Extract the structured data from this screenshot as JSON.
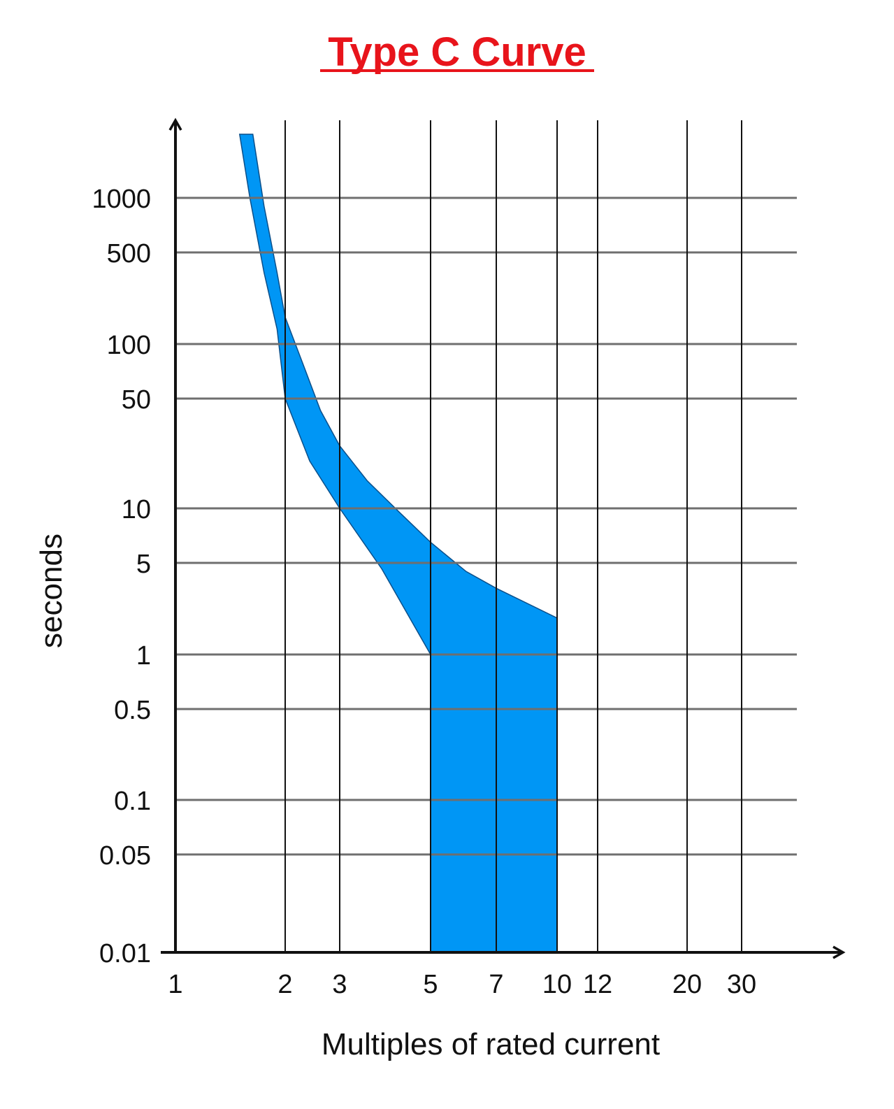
{
  "chart_data": {
    "type": "area",
    "title": "Type C Curve",
    "xlabel": "Multiples of rated current",
    "ylabel": "seconds",
    "x_scale": "log",
    "y_scale": "log",
    "xlim": [
      1,
      50
    ],
    "ylim": [
      0.01,
      3000
    ],
    "x_ticks": [
      {
        "value": 1,
        "label": "1"
      },
      {
        "value": 2,
        "label": "2"
      },
      {
        "value": 3,
        "label": "3"
      },
      {
        "value": 5,
        "label": "5"
      },
      {
        "value": 7,
        "label": "7"
      },
      {
        "value": 10,
        "label": "10"
      },
      {
        "value": 12,
        "label": "12"
      },
      {
        "value": 20,
        "label": "20"
      },
      {
        "value": 30,
        "label": "30"
      }
    ],
    "y_ticks": [
      {
        "value": 1000,
        "label": "1000"
      },
      {
        "value": 500,
        "label": "500"
      },
      {
        "value": 100,
        "label": "100"
      },
      {
        "value": 50,
        "label": "50"
      },
      {
        "value": 10,
        "label": "10"
      },
      {
        "value": 5,
        "label": "5"
      },
      {
        "value": 1,
        "label": "1"
      },
      {
        "value": 0.5,
        "label": "0.5"
      },
      {
        "value": 0.1,
        "label": "0.1"
      },
      {
        "value": 0.05,
        "label": "0.05"
      },
      {
        "value": 0.01,
        "label": "0.01"
      }
    ],
    "grid": true,
    "fill_color": "#0096f5",
    "band": {
      "upper": [
        {
          "x": 1.63,
          "y": 1800
        },
        {
          "x": 1.75,
          "y": 900
        },
        {
          "x": 1.9,
          "y": 350
        },
        {
          "x": 2.0,
          "y": 160
        },
        {
          "x": 2.3,
          "y": 75
        },
        {
          "x": 2.6,
          "y": 42
        },
        {
          "x": 3.0,
          "y": 25
        },
        {
          "x": 3.5,
          "y": 15
        },
        {
          "x": 4.2,
          "y": 9.5
        },
        {
          "x": 5.0,
          "y": 6.5
        },
        {
          "x": 6.0,
          "y": 4.3
        },
        {
          "x": 7.0,
          "y": 3.2
        },
        {
          "x": 10.0,
          "y": 1.9
        }
      ],
      "lower": [
        {
          "x": 1.5,
          "y": 1800
        },
        {
          "x": 1.6,
          "y": 1000
        },
        {
          "x": 1.75,
          "y": 350
        },
        {
          "x": 1.9,
          "y": 130
        },
        {
          "x": 2.0,
          "y": 50
        },
        {
          "x": 2.4,
          "y": 20
        },
        {
          "x": 3.0,
          "y": 10
        },
        {
          "x": 3.8,
          "y": 4.5
        },
        {
          "x": 5.0,
          "y": 1.0
        }
      ],
      "cutoff_low_x": 5,
      "cutoff_high_x": 10,
      "bottom_y": 0.01
    }
  }
}
